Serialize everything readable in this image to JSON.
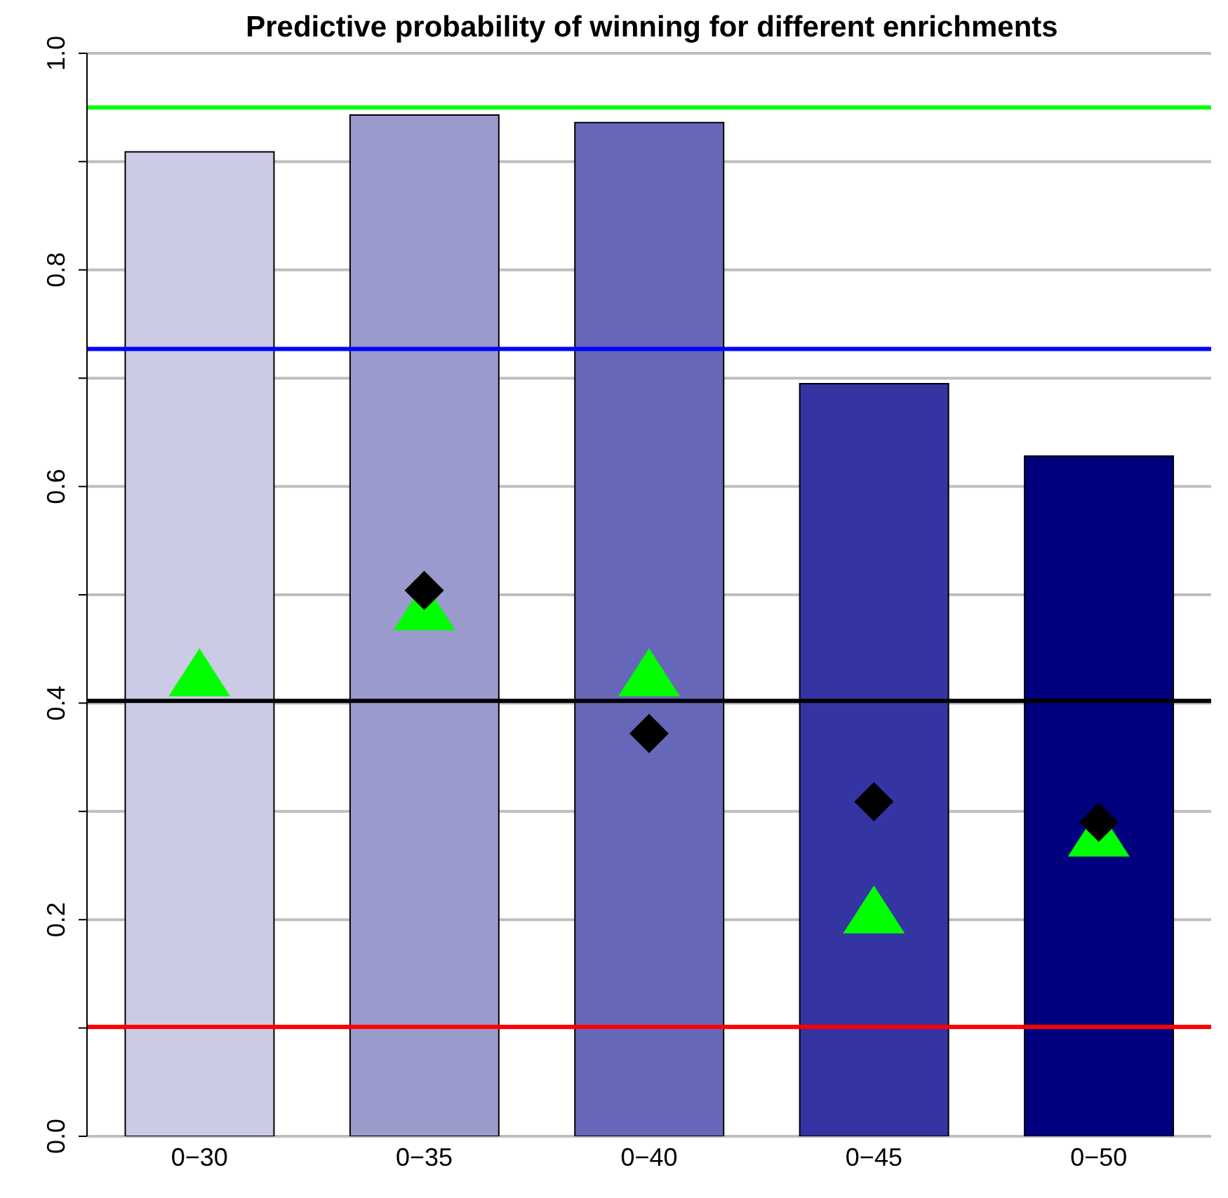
{
  "chart_data": {
    "type": "bar",
    "title": "Predictive probability of winning for different enrichments",
    "categories": [
      "0−30",
      "0−35",
      "0−40",
      "0−45",
      "0−50"
    ],
    "series": [
      {
        "values": [
          0.909,
          0.943,
          0.936,
          0.695,
          0.628
        ],
        "colors": [
          "#cbcbe6",
          "#9a9acd",
          "#6767b9",
          "#3434a3",
          "#00007f"
        ]
      },
      {
        "type": "scatter",
        "marker": "triangle",
        "color": "#00ff00",
        "values": [
          0.426,
          0.487,
          0.426,
          0.207,
          0.278
        ]
      },
      {
        "type": "scatter",
        "marker": "diamond",
        "color": "#000000",
        "values": [
          null,
          0.504,
          0.372,
          0.309,
          0.29
        ]
      }
    ],
    "ylim": [
      0,
      1
    ],
    "yticks": [
      {
        "value": 0,
        "label": "0.0"
      },
      {
        "value": 0.1,
        "label": null
      },
      {
        "value": 0.2,
        "label": "0.2"
      },
      {
        "value": 0.3,
        "label": null
      },
      {
        "value": 0.4,
        "label": "0.4"
      },
      {
        "value": 0.5,
        "label": null
      },
      {
        "value": 0.6,
        "label": "0.6"
      },
      {
        "value": 0.7,
        "label": null
      },
      {
        "value": 0.8,
        "label": "0.8"
      },
      {
        "value": 0.9,
        "label": null
      },
      {
        "value": 1,
        "label": "1.0"
      }
    ],
    "grid": "y",
    "legend": false,
    "ref_lines": [
      {
        "axis": "y",
        "value": 0.95,
        "color": "#00ff00"
      },
      {
        "axis": "y",
        "value": 0.727,
        "color": "#0000ff"
      },
      {
        "axis": "y",
        "value": 0.402,
        "color": "#000000"
      },
      {
        "axis": "y",
        "value": 0.101,
        "color": "#ff0000"
      }
    ]
  }
}
